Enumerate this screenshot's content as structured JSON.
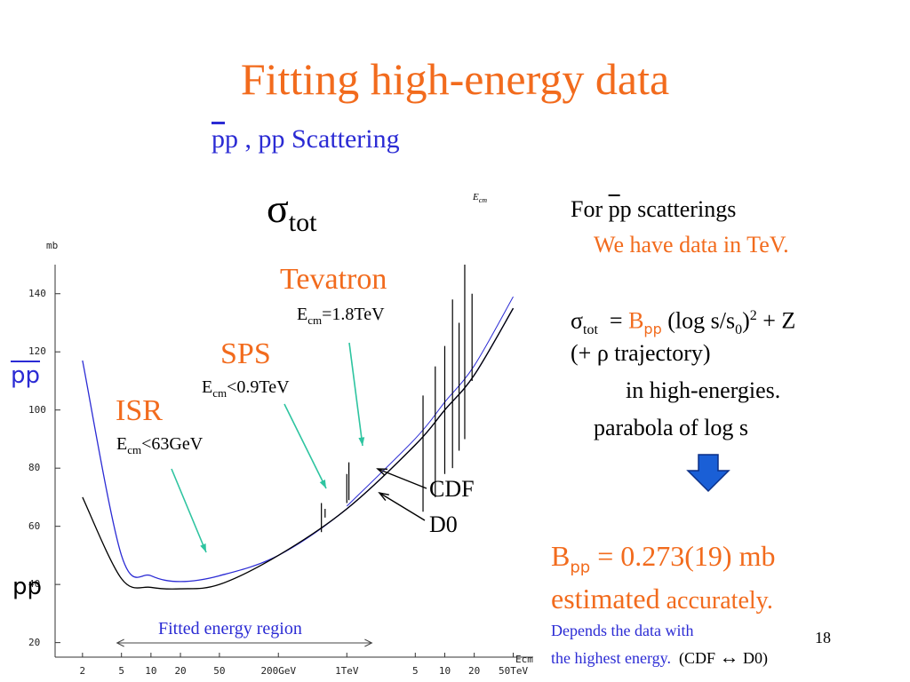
{
  "slide": {
    "title": "Fitting high-energy data",
    "subtitle_pbar": "p",
    "subtitle_rest": "p , pp Scattering",
    "sigma_symbol": "σ",
    "sigma_sub": "tot",
    "ecm_label_main": "E",
    "ecm_label_sub": "cm",
    "page_number": "18"
  },
  "chart_data": {
    "type": "line",
    "ylabel": "mb",
    "xlabel": "Ecm",
    "y_ticks": [
      "20",
      "40",
      "60",
      "80",
      "100",
      "120",
      "140"
    ],
    "x_ticks": [
      "2",
      "5",
      "10",
      "20",
      "50",
      "200GeV",
      "1TeV",
      "5",
      "10",
      "20",
      "50TeV"
    ],
    "ylim": [
      15,
      150
    ],
    "series": [
      {
        "name": "pp",
        "color": "#2b2bd4",
        "x_tev": [
          0.002,
          0.005,
          0.01,
          0.02,
          0.05,
          0.2,
          1,
          5,
          10,
          20,
          50
        ],
        "y_mb": [
          117,
          50,
          43,
          41,
          43,
          50,
          66,
          88,
          100,
          112,
          135
        ]
      },
      {
        "name": "pp",
        "color": "#000000",
        "x_tev": [
          0.002,
          0.005,
          0.01,
          0.02,
          0.05,
          0.2,
          1,
          5,
          10,
          20,
          50
        ],
        "y_mb": [
          70,
          42,
          39,
          38.5,
          40,
          50,
          66,
          88,
          100,
          112,
          135
        ]
      }
    ],
    "series_labels": {
      "pbar_p": "pp",
      "pp": "pp"
    },
    "fitted_region_label": "Fitted energy region"
  },
  "annotations": {
    "tevatron": {
      "name": "Tevatron",
      "energy_main": "E",
      "energy_sub": "cm",
      "energy_rest": "=1.8TeV"
    },
    "sps": {
      "name": "SPS",
      "energy_main": "E",
      "energy_sub": "cm",
      "energy_rest": "<0.9TeV"
    },
    "isr": {
      "name": "ISR",
      "energy_main": "E",
      "energy_sub": "cm",
      "energy_rest": "<63GeV"
    },
    "cdf": "CDF",
    "d0": "D0"
  },
  "right_panel": {
    "line1_a": "For ",
    "line1_pbar": "p",
    "line1_b": "p scatterings",
    "line2": "We have data in TeV.",
    "formula_sigma": "σ",
    "formula_sigma_sub": "tot",
    "formula_eq": "= ",
    "formula_B": "B",
    "formula_B_sub": "pp",
    "formula_rest": " (log s/s",
    "formula_s0_sub": "0",
    "formula_rest2": ")",
    "formula_sup": "2",
    "formula_rest3": " + Z",
    "line4": "(+ ρ trajectory)",
    "line5": "in high-energies.",
    "line6": "parabola of  log s",
    "result_B": "B",
    "result_B_sub": "pp",
    "result_value": " = 0.273(19) mb",
    "result_line2_big": "estimated",
    "result_line2_small": " accurately.",
    "depends_line1": "Depends  the data with",
    "depends_line2": " the highest energy.",
    "cdf_d0": "(CDF  ",
    "arrow_symbol": "↔",
    "d0_end": " D0)"
  },
  "colors": {
    "title": "#f26b1d",
    "accent_blue": "#2b2bd4",
    "arrow_teal": "#2ec4a0",
    "down_arrow": "#1a5fd6"
  }
}
